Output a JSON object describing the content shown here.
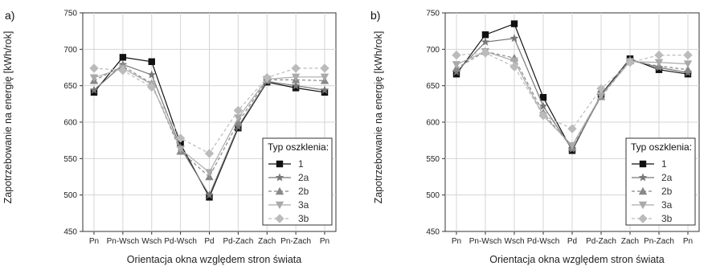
{
  "chart_data": [
    {
      "type": "line",
      "panel_label": "a)",
      "ylabel": "Zapotrzebowanie na energię [kWh/rok]",
      "xlabel": "Orientacja okna względem stron świata",
      "categories": [
        "Pn",
        "Pn-Wsch",
        "Wsch",
        "Pd-Wsch",
        "Pd",
        "Pd-Zach",
        "Zach",
        "Pn-Zach",
        "Pn"
      ],
      "ylim": [
        450,
        750
      ],
      "yticks": [
        450,
        500,
        550,
        600,
        650,
        700,
        750
      ],
      "grid": true,
      "legend": {
        "title": "Typ oszklenia:",
        "placement": "bottom-right"
      },
      "series": [
        {
          "name": "1",
          "marker": "square",
          "color": "#111111",
          "dash": "solid",
          "values": [
            641,
            689,
            683,
            570,
            497,
            592,
            655,
            647,
            641
          ]
        },
        {
          "name": "2a",
          "marker": "star",
          "color": "#777777",
          "dash": "solid",
          "values": [
            644,
            679,
            665,
            565,
            500,
            594,
            656,
            650,
            644
          ]
        },
        {
          "name": "2b",
          "marker": "triangle",
          "color": "#888888",
          "dash": "dashed",
          "values": [
            657,
            677,
            653,
            560,
            525,
            600,
            658,
            658,
            657
          ]
        },
        {
          "name": "3a",
          "marker": "tri-down",
          "color": "#aaaaaa",
          "dash": "solid",
          "values": [
            661,
            674,
            652,
            563,
            531,
            606,
            659,
            662,
            662
          ]
        },
        {
          "name": "3b",
          "marker": "diamond",
          "color": "#bbbbbb",
          "dash": "dashed",
          "values": [
            674,
            671,
            648,
            578,
            557,
            616,
            661,
            674,
            674
          ]
        }
      ]
    },
    {
      "type": "line",
      "panel_label": "b)",
      "ylabel": "Zapotrzebowanie na energię [kWh/rok]",
      "xlabel": "Orientacja okna względem stron świata",
      "categories": [
        "Pn",
        "Pn-Wsch",
        "Wsch",
        "Pd-Wsch",
        "Pd",
        "Pd-Zach",
        "Zach",
        "Pn-Zach",
        "Pn"
      ],
      "ylim": [
        450,
        750
      ],
      "yticks": [
        450,
        500,
        550,
        600,
        650,
        700,
        750
      ],
      "grid": true,
      "legend": {
        "title": "Typ oszklenia:",
        "placement": "bottom-right"
      },
      "series": [
        {
          "name": "1",
          "marker": "square",
          "color": "#111111",
          "dash": "solid",
          "values": [
            666,
            720,
            735,
            634,
            561,
            638,
            687,
            672,
            666
          ]
        },
        {
          "name": "2a",
          "marker": "star",
          "color": "#777777",
          "dash": "solid",
          "values": [
            669,
            710,
            715,
            622,
            563,
            636,
            686,
            675,
            668
          ]
        },
        {
          "name": "2b",
          "marker": "triangle",
          "color": "#888888",
          "dash": "dashed",
          "values": [
            674,
            697,
            688,
            613,
            565,
            635,
            684,
            677,
            672
          ]
        },
        {
          "name": "3a",
          "marker": "tri-down",
          "color": "#aaaaaa",
          "dash": "solid",
          "values": [
            679,
            697,
            684,
            609,
            568,
            637,
            683,
            682,
            680
          ]
        },
        {
          "name": "3b",
          "marker": "diamond",
          "color": "#bbbbbb",
          "dash": "dashed",
          "values": [
            692,
            695,
            676,
            609,
            591,
            646,
            682,
            692,
            692
          ]
        }
      ]
    }
  ]
}
